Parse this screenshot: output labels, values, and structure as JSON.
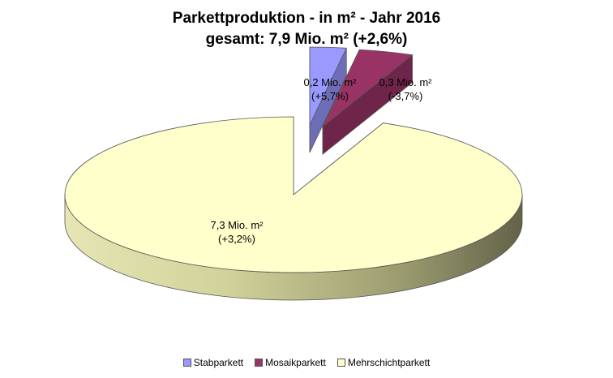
{
  "chart_data": {
    "type": "pie",
    "title": "Parkettproduktion - in m² - Jahr 2016",
    "subtitle": "gesamt: 7,9 Mio. m² (+2,6%)",
    "unit": "Mio. m²",
    "legend_position": "bottom",
    "three_d": true,
    "exploded": true,
    "slices": [
      {
        "name": "Stabparkett",
        "value": 0.2,
        "value_label": "0,2 Mio. m²",
        "change_label": "(+5,7%)",
        "color": "#9999ff"
      },
      {
        "name": "Mosaikparkett",
        "value": 0.3,
        "value_label": "0,3 Mio. m²",
        "change_label": "(-3,7%)",
        "color": "#993366"
      },
      {
        "name": "Mehrschichtparkett",
        "value": 7.3,
        "value_label": "7,3 Mio. m²",
        "change_label": "(+3,2%)",
        "color": "#ffffcc"
      }
    ]
  }
}
